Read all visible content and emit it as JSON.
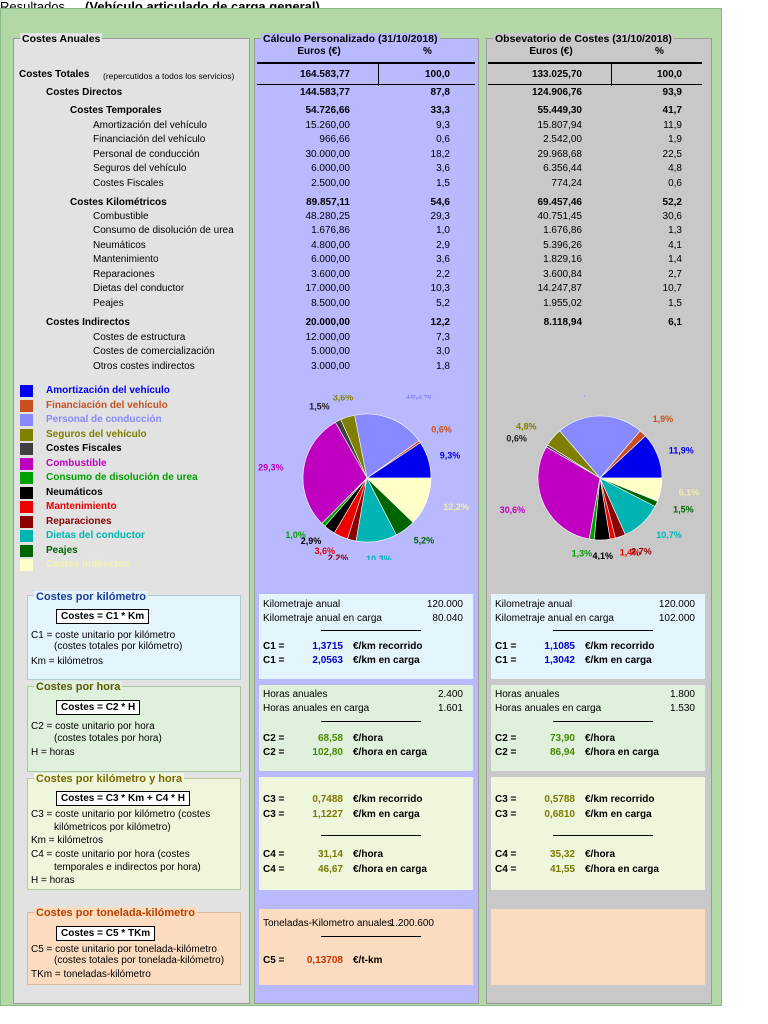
{
  "window": {
    "title_left": "Resultados",
    "title_main": "(Vehículo articulado de carga general)"
  },
  "columns": {
    "c1": "Costes Anuales",
    "c2": "Cálculo Personalizado (31/10/2018)",
    "c3": "Obsevatorio de Costes (31/10/2018)",
    "euros": "Euros (€)",
    "pct": "%"
  },
  "rows": [
    {
      "label": "Costes Totales",
      "note": "(repercutidos a todos los servicios)",
      "p_eur": "164.583,77",
      "p_pct": "100,0",
      "o_eur": "133.025,70",
      "o_pct": "100,0",
      "bold": true,
      "lvl": 0
    },
    {
      "label": "Costes Directos",
      "p_eur": "144.583,77",
      "p_pct": "87,8",
      "o_eur": "124.906,76",
      "o_pct": "93,9",
      "bold": true,
      "lvl": 1
    },
    {
      "label": "Costes Temporales",
      "p_eur": "54.726,66",
      "p_pct": "33,3",
      "o_eur": "55.449,30",
      "o_pct": "41,7",
      "bold": true,
      "lvl": 2
    },
    {
      "label": "Amortización del vehículo",
      "p_eur": "15.260,00",
      "p_pct": "9,3",
      "o_eur": "15.807,94",
      "o_pct": "11,9",
      "bold": false,
      "lvl": 3
    },
    {
      "label": "Financiación del vehículo",
      "p_eur": "966,66",
      "p_pct": "0,6",
      "o_eur": "2.542,00",
      "o_pct": "1,9",
      "bold": false,
      "lvl": 3
    },
    {
      "label": "Personal de conducción",
      "p_eur": "30.000,00",
      "p_pct": "18,2",
      "o_eur": "29.968,68",
      "o_pct": "22,5",
      "bold": false,
      "lvl": 3
    },
    {
      "label": "Seguros del vehículo",
      "p_eur": "6.000,00",
      "p_pct": "3,6",
      "o_eur": "6.356,44",
      "o_pct": "4,8",
      "bold": false,
      "lvl": 3
    },
    {
      "label": "Costes Fiscales",
      "p_eur": "2.500,00",
      "p_pct": "1,5",
      "o_eur": "774,24",
      "o_pct": "0,6",
      "bold": false,
      "lvl": 3
    },
    {
      "label": "Costes Kilométricos",
      "p_eur": "89.857,11",
      "p_pct": "54,6",
      "o_eur": "69.457,46",
      "o_pct": "52,2",
      "bold": true,
      "lvl": 2
    },
    {
      "label": "Combustible",
      "p_eur": "48.280,25",
      "p_pct": "29,3",
      "o_eur": "40.751,45",
      "o_pct": "30,6",
      "bold": false,
      "lvl": 3
    },
    {
      "label": "Consumo de disolución de urea",
      "p_eur": "1.676,86",
      "p_pct": "1,0",
      "o_eur": "1.676,86",
      "o_pct": "1,3",
      "bold": false,
      "lvl": 3
    },
    {
      "label": "Neumáticos",
      "p_eur": "4.800,00",
      "p_pct": "2,9",
      "o_eur": "5.396,26",
      "o_pct": "4,1",
      "bold": false,
      "lvl": 3
    },
    {
      "label": "Mantenimiento",
      "p_eur": "6.000,00",
      "p_pct": "3,6",
      "o_eur": "1.829,16",
      "o_pct": "1,4",
      "bold": false,
      "lvl": 3
    },
    {
      "label": "Reparaciones",
      "p_eur": "3.600,00",
      "p_pct": "2,2",
      "o_eur": "3.600,84",
      "o_pct": "2,7",
      "bold": false,
      "lvl": 3
    },
    {
      "label": "Dietas del conductor",
      "p_eur": "17.000,00",
      "p_pct": "10,3",
      "o_eur": "14.247,87",
      "o_pct": "10,7",
      "bold": false,
      "lvl": 3
    },
    {
      "label": "Peajes",
      "p_eur": "8.500,00",
      "p_pct": "5,2",
      "o_eur": "1.955,02",
      "o_pct": "1,5",
      "bold": false,
      "lvl": 3
    },
    {
      "label": "Costes Indirectos",
      "p_eur": "20.000,00",
      "p_pct": "12,2",
      "o_eur": "8.118,94",
      "o_pct": "6,1",
      "bold": true,
      "lvl": 1
    },
    {
      "label": "Costes de estructura",
      "p_eur": "12.000,00",
      "p_pct": "7,3",
      "o_eur": "",
      "o_pct": "",
      "bold": false,
      "lvl": 3
    },
    {
      "label": "Costes de comercialización",
      "p_eur": "5.000,00",
      "p_pct": "3,0",
      "o_eur": "",
      "o_pct": "",
      "bold": false,
      "lvl": 3
    },
    {
      "label": "Otros costes indirectos",
      "p_eur": "3.000,00",
      "p_pct": "1,8",
      "o_eur": "",
      "o_pct": "",
      "bold": false,
      "lvl": 3
    }
  ],
  "legend": [
    {
      "label": "Amortización del vehículo",
      "color": "#0000ee"
    },
    {
      "label": "Financiación del vehículo",
      "color": "#c8501e"
    },
    {
      "label": "Personal de conducción",
      "color": "#8888ff"
    },
    {
      "label": "Seguros del vehículo",
      "color": "#808000"
    },
    {
      "label": "Costes Fiscales",
      "color": "#404040"
    },
    {
      "label": "Combustible",
      "color": "#c000c0"
    },
    {
      "label": "Consumo de disolución de urea",
      "color": "#00a000"
    },
    {
      "label": "Neumáticos",
      "color": "#000000"
    },
    {
      "label": "Mantenimiento",
      "color": "#ee0000"
    },
    {
      "label": "Reparaciones",
      "color": "#8b0000"
    },
    {
      "label": "Dietas del conductor",
      "color": "#00b4b4"
    },
    {
      "label": "Peajes",
      "color": "#006400"
    },
    {
      "label": "Costes Indirectos",
      "color": "#ffffc8"
    }
  ],
  "chart_data": [
    {
      "type": "pie",
      "name_ref": "Cálculo Personalizado",
      "categories": [
        "Amortización del vehículo",
        "Financiación del vehículo",
        "Personal de conducción",
        "Seguros del vehículo",
        "Costes Fiscales",
        "Combustible",
        "Consumo de disolución de urea",
        "Neumáticos",
        "Mantenimiento",
        "Reparaciones",
        "Dietas del conductor",
        "Peajes",
        "Costes Indirectos"
      ],
      "values": [
        9.3,
        0.6,
        18.2,
        3.6,
        1.5,
        29.3,
        1.0,
        2.9,
        3.6,
        2.2,
        10.3,
        5.2,
        12.2
      ],
      "labels": [
        "9,3%",
        "0,6%",
        "18,2%",
        "3,6%",
        "1,5%",
        "29,3%",
        "1,0%",
        "2,9%",
        "3,6%",
        "2,2%",
        "10,3%",
        "5,2%",
        "12,2%"
      ]
    },
    {
      "type": "pie",
      "name_ref": "Observatorio de Costes",
      "categories": [
        "Amortización del vehículo",
        "Financiación del vehículo",
        "Personal de conducción",
        "Seguros del vehículo",
        "Costes Fiscales",
        "Combustible",
        "Consumo de disolución de urea",
        "Neumáticos",
        "Mantenimiento",
        "Reparaciones",
        "Dietas del conductor",
        "Peajes",
        "Costes Indirectos"
      ],
      "values": [
        11.9,
        1.9,
        22.5,
        4.8,
        0.6,
        30.6,
        1.3,
        4.1,
        1.4,
        2.7,
        10.7,
        1.5,
        6.1
      ],
      "labels": [
        "11,9%",
        "1,9%",
        "22,5%",
        "4,8%",
        "0,6%",
        "30,6%",
        "1,3%",
        "4,1%",
        "1,4%",
        "2,7%",
        "10,7%",
        "1,5%",
        "6,1%"
      ]
    }
  ],
  "sections": {
    "km": {
      "title": "Costes por kilómetro",
      "formula": "Costes = C1 * Km",
      "def1": "C1 = coste unitario por kilómetro",
      "def1b": "(costes totales por kilómetro)",
      "def2": "Km = kilómetros",
      "p": {
        "l1": "Kilometraje anual",
        "v1": "120.000",
        "l2": "Kilometraje anual en carga",
        "v2": "80.040",
        "k1": "C1 =",
        "n1": "1,3715",
        "u1": "€/km recorrido",
        "k2": "C1 =",
        "n2": "2,0563",
        "u2": "€/km en carga"
      },
      "o": {
        "l1": "Kilometraje anual",
        "v1": "120.000",
        "l2": "Kilometraje anual en carga",
        "v2": "102.000",
        "k1": "C1 =",
        "n1": "1,1085",
        "u1": "€/km recorrido",
        "k2": "C1 =",
        "n2": "1,3042",
        "u2": "€/km en carga"
      }
    },
    "hora": {
      "title": "Costes por hora",
      "formula": "Costes = C2 * H",
      "def1": "C2 = coste unitario por hora",
      "def1b": "(costes totales por hora)",
      "def2": "H = horas",
      "p": {
        "l1": "Horas anuales",
        "v1": "2.400",
        "l2": "Horas anuales en carga",
        "v2": "1.601",
        "k1": "C2 =",
        "n1": "68,58",
        "u1": "€/hora",
        "k2": "C2 =",
        "n2": "102,80",
        "u2": "€/hora en carga"
      },
      "o": {
        "l1": "Horas anuales",
        "v1": "1.800",
        "l2": "Horas anuales en carga",
        "v2": "1.530",
        "k1": "C2 =",
        "n1": "73,90",
        "u1": "€/hora",
        "k2": "C2 =",
        "n2": "86,94",
        "u2": "€/hora en carga"
      }
    },
    "kmh": {
      "title": "Costes por kilómetro y hora",
      "formula": "Costes = C3 * Km + C4 * H",
      "d1": "C3 = coste unitario por kilómetro (costes",
      "d1b": "kilómetricos por kilómetro)",
      "d2": "Km = kilómetros",
      "d3": "C4 = coste unitario por hora (costes",
      "d3b": "temporales e indirectos por hora)",
      "d4": "H = horas",
      "p": {
        "k1": "C3 =",
        "n1": "0,7488",
        "u1": "€/km recorrido",
        "k2": "C3 =",
        "n2": "1,1227",
        "u2": "€/km en carga",
        "k3": "C4 =",
        "n3": "31,14",
        "u3": "€/hora",
        "k4": "C4 =",
        "n4": "46,67",
        "u4": "€/hora en carga"
      },
      "o": {
        "k1": "C3 =",
        "n1": "0,5788",
        "u1": "€/km recorrido",
        "k2": "C3 =",
        "n2": "0,6810",
        "u2": "€/km en carga",
        "k3": "C4 =",
        "n3": "35,32",
        "u3": "€/hora",
        "k4": "C4 =",
        "n4": "41,55",
        "u4": "€/hora en carga"
      }
    },
    "tkm": {
      "title": "Costes por tonelada-kilómetro",
      "formula": "Costes = C5 * TKm",
      "def1": "C5 = coste unitario por tonelada-kilómetro",
      "def1b": "(costes totales por tonelada-kilómetro)",
      "def2": "TKm = toneladas-kilómetro",
      "p": {
        "l1": "Toneladas-Kilometro anuales",
        "v1": "1.200.600",
        "k1": "C5 =",
        "n1": "0,13708",
        "u1": "€/t-km"
      }
    }
  },
  "colors": {
    "km_num": "#0000cc",
    "hora_num": "#4a8a00",
    "kmh_num": "#7a7a00",
    "tkm_num": "#cc3300"
  }
}
